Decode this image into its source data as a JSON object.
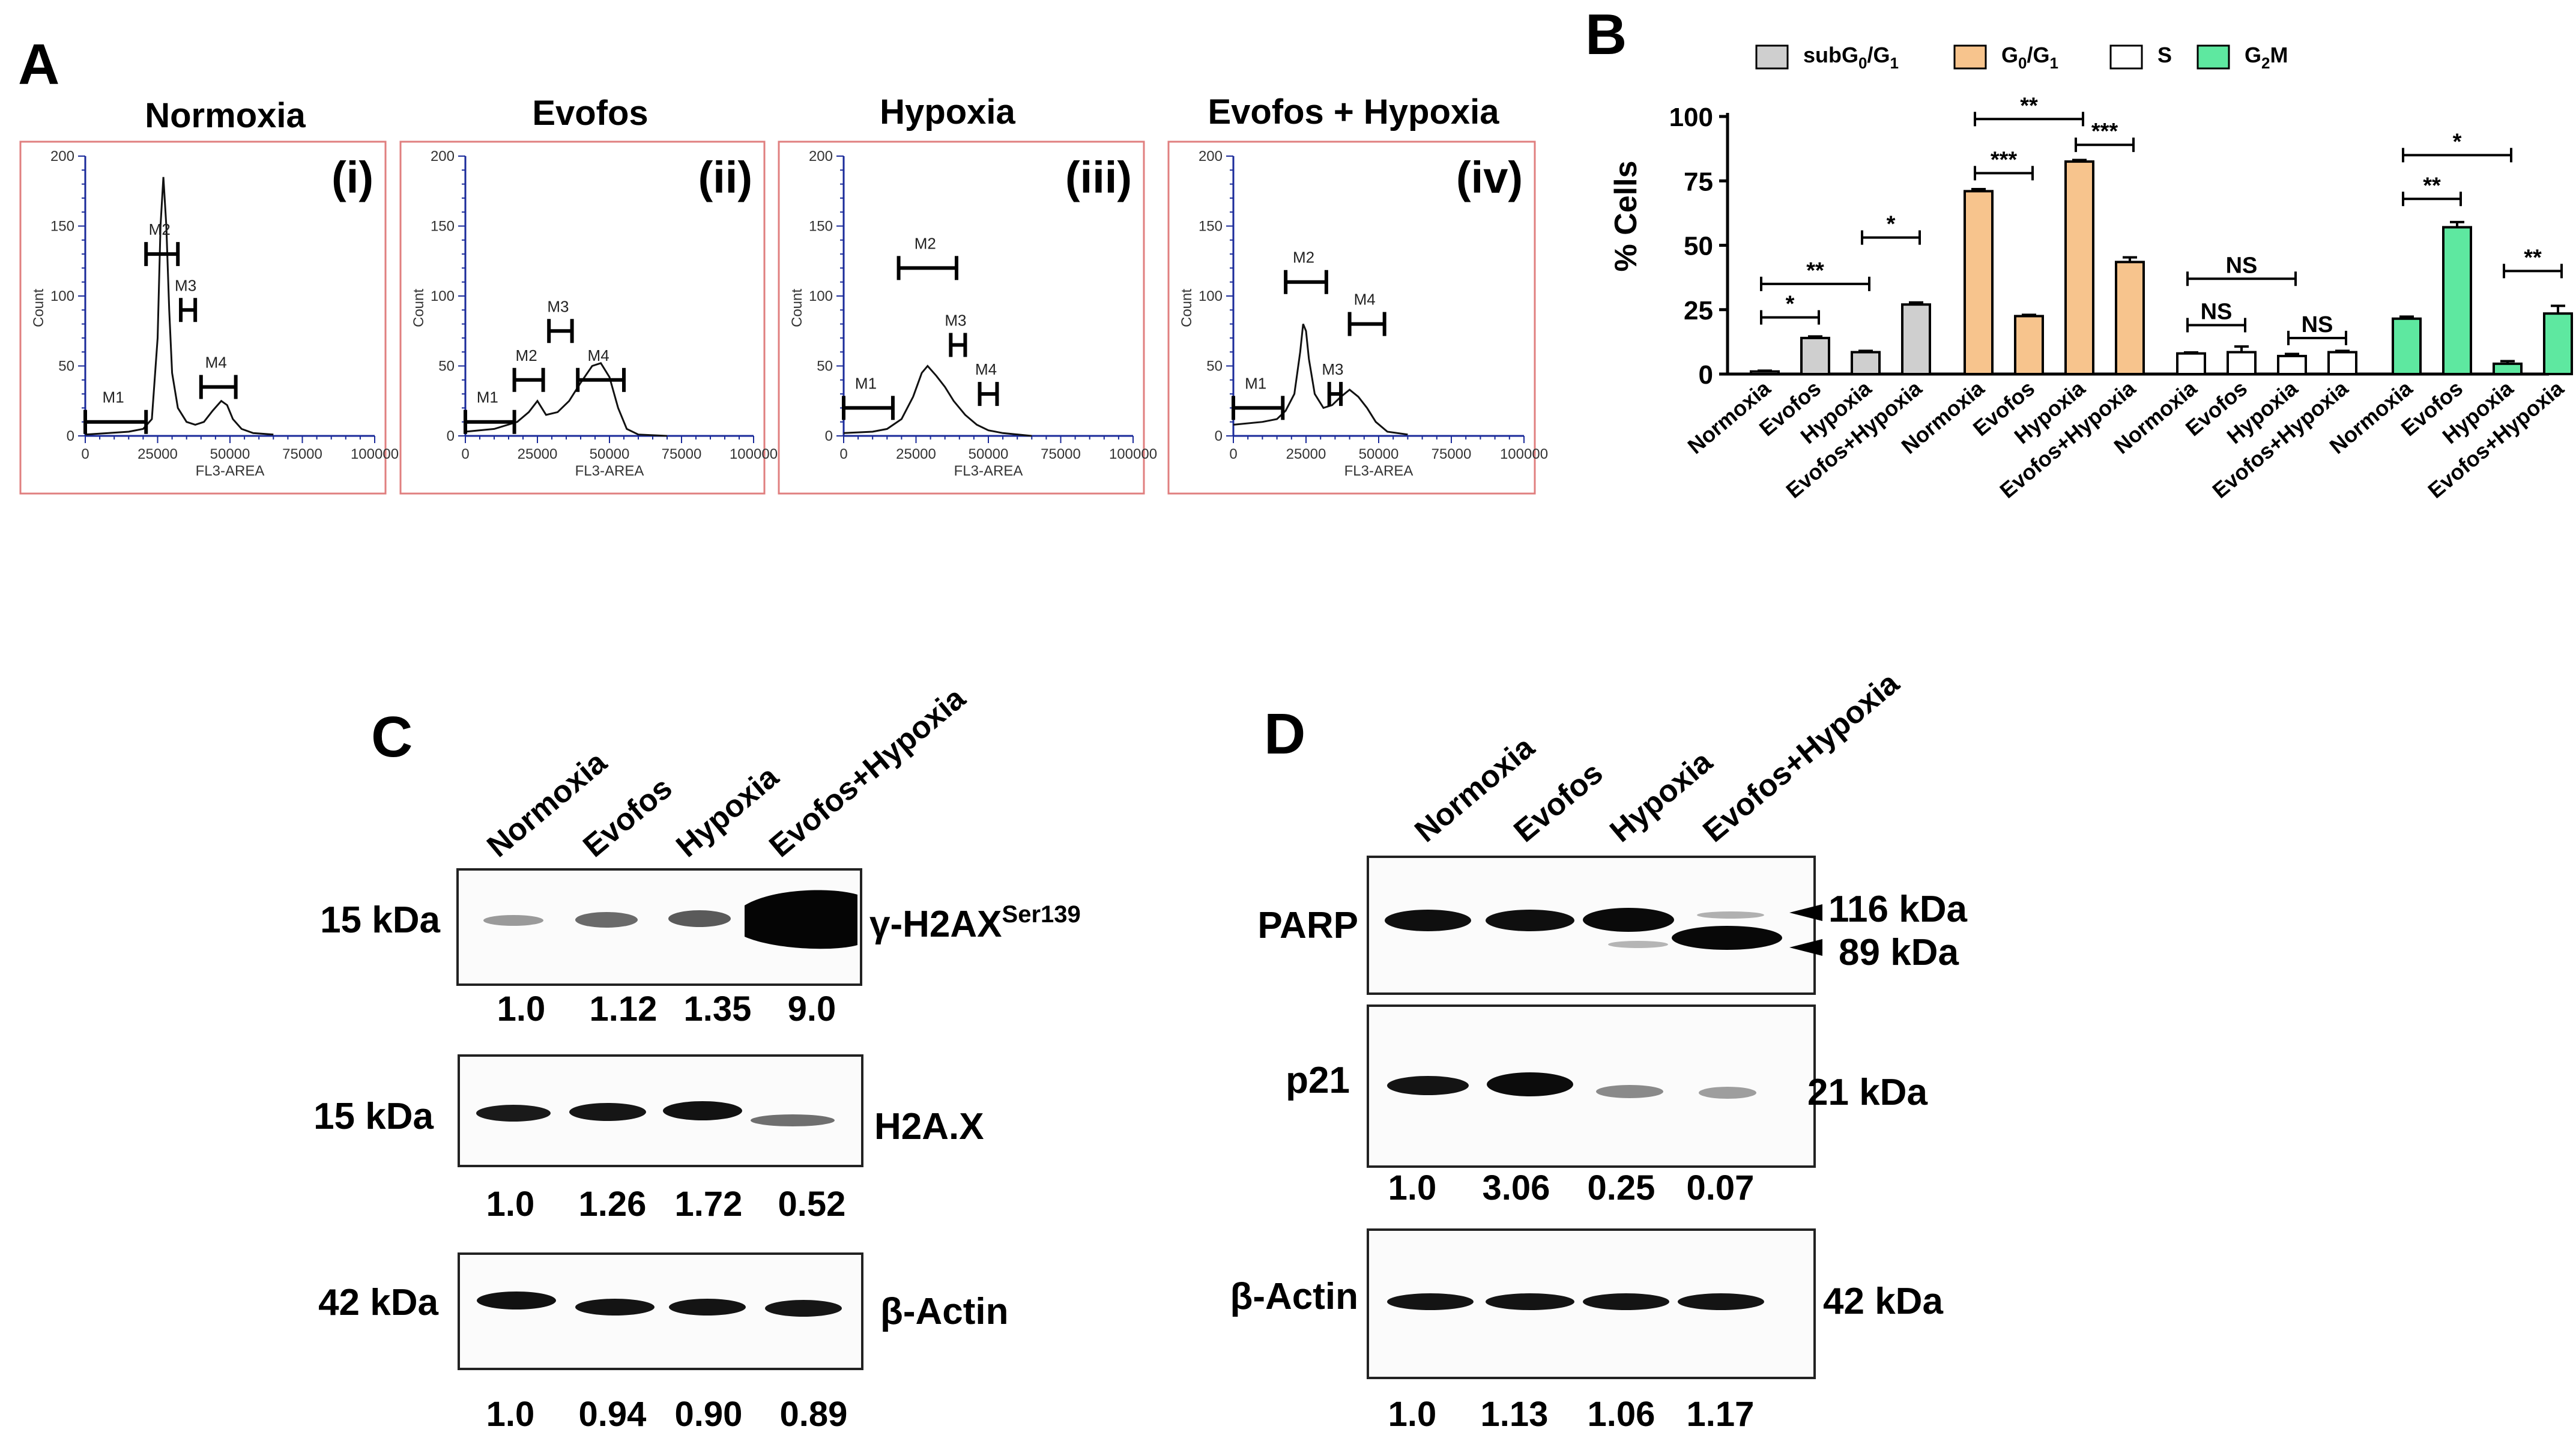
{
  "figure": {
    "panels": {
      "A": {
        "letter": "A",
        "histograms": [
          {
            "title": "Normoxia",
            "numeral": "(i)",
            "curve": [
              [
                0,
                1
              ],
              [
                8,
                2
              ],
              [
                15,
                3
              ],
              [
                20,
                5
              ],
              [
                23,
                12
              ],
              [
                25,
                70
              ],
              [
                26,
                150
              ],
              [
                27,
                185
              ],
              [
                28,
                150
              ],
              [
                29,
                90
              ],
              [
                30,
                45
              ],
              [
                32,
                20
              ],
              [
                35,
                10
              ],
              [
                38,
                8
              ],
              [
                41,
                10
              ],
              [
                44,
                18
              ],
              [
                47,
                25
              ],
              [
                49,
                22
              ],
              [
                51,
                12
              ],
              [
                54,
                5
              ],
              [
                58,
                2
              ],
              [
                65,
                1
              ]
            ],
            "gates": [
              {
                "name": "M1",
                "y": 10,
                "x1": 0,
                "x2": 21000
              },
              {
                "name": "M2",
                "y": 130,
                "x1": 21000,
                "x2": 32000
              },
              {
                "name": "M3",
                "y": 90,
                "x1": 33000,
                "x2": 38000
              },
              {
                "name": "M4",
                "y": 35,
                "x1": 40000,
                "x2": 52000
              }
            ]
          },
          {
            "title": "Evofos",
            "numeral": "(ii)",
            "curve": [
              [
                0,
                3
              ],
              [
                10,
                5
              ],
              [
                18,
                10
              ],
              [
                22,
                17
              ],
              [
                25,
                25
              ],
              [
                28,
                15
              ],
              [
                32,
                17
              ],
              [
                36,
                25
              ],
              [
                40,
                38
              ],
              [
                44,
                50
              ],
              [
                47,
                52
              ],
              [
                50,
                42
              ],
              [
                53,
                20
              ],
              [
                56,
                5
              ],
              [
                60,
                1
              ],
              [
                70,
                0
              ]
            ],
            "gates": [
              {
                "name": "M1",
                "y": 10,
                "x1": 0,
                "x2": 17000
              },
              {
                "name": "M2",
                "y": 40,
                "x1": 17000,
                "x2": 27000
              },
              {
                "name": "M3",
                "y": 75,
                "x1": 29000,
                "x2": 37000
              },
              {
                "name": "M4",
                "y": 40,
                "x1": 39000,
                "x2": 55000
              }
            ]
          },
          {
            "title": "Hypoxia",
            "numeral": "(iii)",
            "curve": [
              [
                0,
                2
              ],
              [
                10,
                3
              ],
              [
                15,
                5
              ],
              [
                20,
                12
              ],
              [
                24,
                28
              ],
              [
                27,
                45
              ],
              [
                29,
                50
              ],
              [
                32,
                43
              ],
              [
                35,
                35
              ],
              [
                38,
                25
              ],
              [
                42,
                15
              ],
              [
                46,
                8
              ],
              [
                50,
                4
              ],
              [
                55,
                2
              ],
              [
                65,
                0
              ]
            ],
            "gates": [
              {
                "name": "M1",
                "y": 20,
                "x1": 0,
                "x2": 17000
              },
              {
                "name": "M2",
                "y": 120,
                "x1": 19000,
                "x2": 39000
              },
              {
                "name": "M3",
                "y": 65,
                "x1": 37000,
                "x2": 42000
              },
              {
                "name": "M4",
                "y": 30,
                "x1": 47000,
                "x2": 53000
              }
            ]
          },
          {
            "title": "Evofos + Hypoxia",
            "numeral": "(iv)",
            "curve": [
              [
                0,
                8
              ],
              [
                10,
                10
              ],
              [
                15,
                12
              ],
              [
                18,
                18
              ],
              [
                21,
                30
              ],
              [
                23,
                60
              ],
              [
                24,
                80
              ],
              [
                25,
                75
              ],
              [
                26,
                55
              ],
              [
                28,
                30
              ],
              [
                31,
                20
              ],
              [
                34,
                22
              ],
              [
                37,
                28
              ],
              [
                40,
                33
              ],
              [
                43,
                28
              ],
              [
                46,
                20
              ],
              [
                49,
                10
              ],
              [
                53,
                3
              ],
              [
                60,
                1
              ]
            ],
            "gates": [
              {
                "name": "M1",
                "y": 20,
                "x1": 0,
                "x2": 17000
              },
              {
                "name": "M2",
                "y": 110,
                "x1": 18000,
                "x2": 32000
              },
              {
                "name": "M3",
                "y": 30,
                "x1": 33000,
                "x2": 37000
              },
              {
                "name": "M4",
                "y": 80,
                "x1": 40000,
                "x2": 52000
              }
            ]
          }
        ],
        "x_ticks": [
          "0",
          "25000",
          "50000",
          "75000",
          "100000"
        ],
        "y_ticks": [
          "0",
          "50",
          "100",
          "150",
          "200"
        ],
        "x_label": "FL3-AREA",
        "y_label": "Count"
      },
      "B": {
        "letter": "B",
        "legend": [
          {
            "label": "subG",
            "sub1": "0",
            "mid": "/G",
            "sub2": "1",
            "color": "#cfcfcf"
          },
          {
            "label": "G",
            "sub1": "0",
            "mid": "/G",
            "sub2": "1",
            "color": "#f7c48d"
          },
          {
            "label": "S",
            "sub1": "",
            "mid": "",
            "sub2": "",
            "color": "#ffffff"
          },
          {
            "label": "G",
            "sub1": "2",
            "mid": "M",
            "sub2": "",
            "color": "#5ee8a0"
          }
        ],
        "y_ticks": [
          "0",
          "25",
          "50",
          "75",
          "100"
        ],
        "categories": [
          "Normoxia",
          "Evofos",
          "Hypoxia",
          "Evofos+Hypoxia"
        ],
        "annotations": {
          "subG1": [
            {
              "label": "*",
              "a": 0,
              "b": 1,
              "y": 22
            },
            {
              "label": "**",
              "a": 0,
              "b": 2,
              "y": 35
            },
            {
              "label": "*",
              "a": 2,
              "b": 3,
              "y": 53
            }
          ],
          "G0G1": [
            {
              "label": "***",
              "a": 0,
              "b": 1,
              "y": 78
            },
            {
              "label": "**",
              "a": 0,
              "b": 2,
              "y": 99
            },
            {
              "label": "***",
              "a": 2,
              "b": 3,
              "y": 89
            }
          ],
          "S": [
            {
              "label": "NS",
              "a": 0,
              "b": 1,
              "y": 19
            },
            {
              "label": "NS",
              "a": 0,
              "b": 2,
              "y": 37
            },
            {
              "label": "NS",
              "a": 2,
              "b": 3,
              "y": 14
            }
          ],
          "G2M": [
            {
              "label": "**",
              "a": 0,
              "b": 1,
              "y": 68
            },
            {
              "label": "*",
              "a": 0,
              "b": 2,
              "y": 85
            },
            {
              "label": "**",
              "a": 2,
              "b": 3,
              "y": 40
            }
          ]
        }
      },
      "C": {
        "letter": "C",
        "lanes": [
          "Normoxia",
          "Evofos",
          "Hypoxia",
          "Evofos+Hypoxia"
        ],
        "blots": [
          {
            "kda": "15 kDa",
            "protein": "γ-H2AX",
            "superscript": "Ser139",
            "values": [
              "1.0",
              "1.12",
              "1.35",
              "9.0"
            ]
          },
          {
            "kda": "15 kDa",
            "protein": "H2A.X",
            "superscript": "",
            "values": [
              "1.0",
              "1.26",
              "1.72",
              "0.52"
            ]
          },
          {
            "kda": "42 kDa",
            "protein": "β-Actin",
            "superscript": "",
            "values": [
              "1.0",
              "0.94",
              "0.90",
              "0.89"
            ]
          }
        ]
      },
      "D": {
        "letter": "D",
        "lanes": [
          "Normoxia",
          "Evofos",
          "Hypoxia",
          "Evofos+Hypoxia"
        ],
        "blots": [
          {
            "protein": "PARP",
            "kda1": "116 kDa",
            "kda2": "89 kDa",
            "values": []
          },
          {
            "protein": "p21",
            "kda": "21 kDa",
            "values": [
              "1.0",
              "3.06",
              "0.25",
              "0.07"
            ]
          },
          {
            "protein": "β-Actin",
            "kda": "42 kDa",
            "values": [
              "1.0",
              "1.13",
              "1.06",
              "1.17"
            ]
          }
        ]
      }
    }
  },
  "chart_data": {
    "type": "bar",
    "title": "",
    "ylabel": "% Cells",
    "xlabel": "",
    "ylim": [
      0,
      100
    ],
    "categories": [
      "Normoxia",
      "Evofos",
      "Hypoxia",
      "Evofos+Hypoxia"
    ],
    "series": [
      {
        "name": "subG0/G1",
        "values": [
          1,
          14,
          8.5,
          27
        ],
        "errors": [
          0.3,
          0.6,
          0.5,
          0.8
        ]
      },
      {
        "name": "G0/G1",
        "values": [
          71,
          22.5,
          82.5,
          43.5
        ],
        "errors": [
          0.8,
          0.5,
          0.6,
          1.8
        ]
      },
      {
        "name": "S",
        "values": [
          8,
          8.5,
          7,
          8.5
        ],
        "errors": [
          0.4,
          2.2,
          0.8,
          0.5
        ]
      },
      {
        "name": "G2M",
        "values": [
          21.5,
          57,
          4,
          23.5
        ],
        "errors": [
          0.8,
          2,
          1,
          3
        ]
      }
    ]
  }
}
